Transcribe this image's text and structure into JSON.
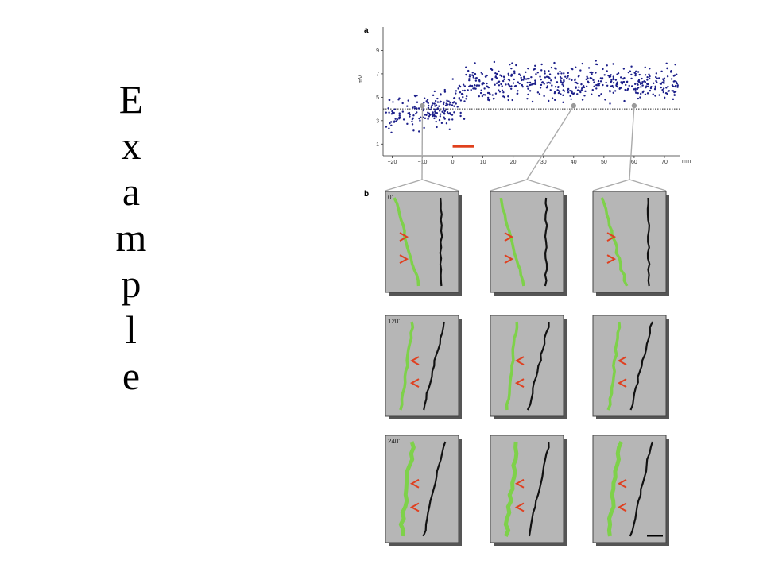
{
  "slide": {
    "title_letters": [
      "E",
      "x",
      "a",
      "m",
      "p",
      "l",
      "e"
    ]
  },
  "figure": {
    "panel_a_label": "a",
    "panel_b_label": "b",
    "colors": {
      "dots": "#1c1f8a",
      "bar": "#e0401c",
      "green": "#7ed14a",
      "black_dendrite": "#111111",
      "arrow": "#e04020",
      "tile_bg": "#b6b6b6",
      "tile_border": "#444444",
      "shadow": "#555555",
      "connector": "#aaaaaa"
    },
    "row_labels": [
      "0'",
      "120'",
      "240'"
    ]
  },
  "chart_data": {
    "type": "scatter",
    "ylabel": "mV",
    "xlabel": "min",
    "x_ticks": [
      -20,
      -10,
      0,
      10,
      20,
      30,
      40,
      50,
      60,
      70
    ],
    "y_ticks": [
      1,
      3,
      5,
      7,
      9
    ],
    "xlim": [
      -23,
      75
    ],
    "ylim": [
      0,
      11
    ],
    "baseline": 4,
    "stimulus_bar": {
      "start": 0,
      "end": 7,
      "y": 0.8
    },
    "segments": [
      {
        "x_start": -22,
        "x_end": 0,
        "mean": 3.8,
        "spread": 1.0
      },
      {
        "x_start": 0,
        "x_end": 4,
        "mean": 5.0,
        "spread": 1.1
      },
      {
        "x_start": 4,
        "x_end": 75,
        "mean": 6.2,
        "spread": 1.0
      }
    ],
    "sample_times": [
      -10,
      40,
      60
    ]
  }
}
